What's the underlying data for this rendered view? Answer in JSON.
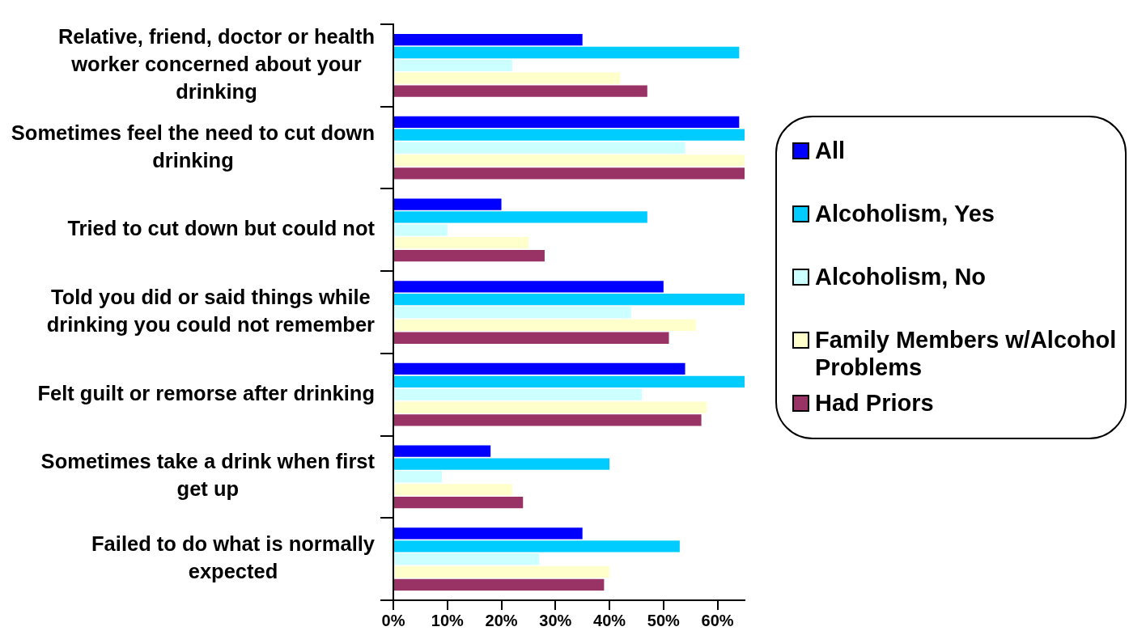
{
  "chart_data": {
    "type": "bar",
    "orientation": "horizontal",
    "categories": [
      "Relative, friend, doctor or health worker concerned about your drinking",
      "Sometimes feel the need to cut down drinking",
      "Tried to cut down but could not",
      "Told you did or said things while drinking you could not remember",
      "Felt guilt or remorse after drinking",
      "Sometimes take a drink when first get up",
      "Failed to do what is normally expected"
    ],
    "series": [
      {
        "name": "All",
        "color": "#0000ff",
        "values": [
          35,
          64,
          20,
          50,
          54,
          18,
          35
        ]
      },
      {
        "name": "Alcoholism, Yes",
        "color": "#00ccff",
        "values": [
          64,
          65,
          47,
          65,
          65,
          40,
          53
        ]
      },
      {
        "name": "Alcoholism, No",
        "color": "#ccffff",
        "values": [
          22,
          54,
          10,
          44,
          46,
          9,
          27
        ]
      },
      {
        "name": "Family Members w/Alcohol Problems",
        "color": "#ffffcc",
        "values": [
          42,
          65,
          25,
          56,
          58,
          22,
          40
        ]
      },
      {
        "name": "Had Priors",
        "color": "#993366",
        "values": [
          47,
          65,
          28,
          51,
          57,
          24,
          39
        ]
      }
    ],
    "xlim": [
      0,
      65
    ],
    "xticks": [
      {
        "value": 0,
        "label": "0%"
      },
      {
        "value": 10,
        "label": "10%"
      },
      {
        "value": 20,
        "label": "20%"
      },
      {
        "value": 30,
        "label": "30%"
      },
      {
        "value": 40,
        "label": "40%"
      },
      {
        "value": 50,
        "label": "50%"
      },
      {
        "value": 60,
        "label": "60%"
      }
    ],
    "legend": "right"
  }
}
